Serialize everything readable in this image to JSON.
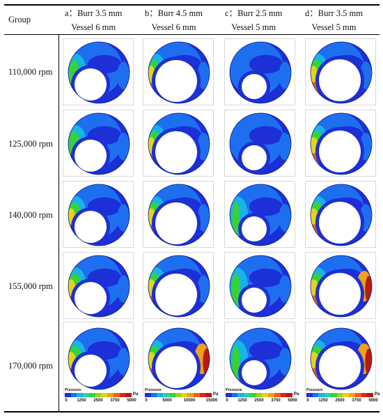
{
  "table": {
    "group_header": "Group",
    "columns": [
      {
        "letter": "a：",
        "burr": "Burr 3.5 mm",
        "vessel": "Vessel 6 mm"
      },
      {
        "letter": "b：",
        "burr": "Burr 4.5 mm",
        "vessel": "Vessel 6 mm"
      },
      {
        "letter": "c：",
        "burr": "Burr 2.5 mm",
        "vessel": "Vessel 5 mm"
      },
      {
        "letter": "d：",
        "burr": "Burr 3.5 mm",
        "vessel": "Vessel 5 mm"
      }
    ],
    "rows": [
      "110,000 rpm",
      "125,000 rpm",
      "140,000 rpm",
      "155,000 rpm",
      "170,000 rpm"
    ]
  },
  "legends": [
    {
      "title": "Pressure",
      "unit": "Pa",
      "ticks": [
        "0",
        "1250",
        "2500",
        "3750",
        "5000"
      ]
    },
    {
      "title": "Pressure",
      "unit": "Pa",
      "ticks": [
        "0",
        "5000",
        "10000",
        "15000"
      ]
    },
    {
      "title": "Pressure",
      "unit": "Pa",
      "ticks": [
        "0",
        "1250",
        "2500",
        "3750",
        "5000"
      ]
    },
    {
      "title": "Pressure",
      "unit": "Pa",
      "ticks": [
        "0",
        "1250",
        "2500",
        "3750",
        "5000"
      ]
    }
  ],
  "colormap": [
    "#1d2fd6",
    "#1e6ff0",
    "#18b4e6",
    "#22d6a8",
    "#36d23a",
    "#9ad21e",
    "#e0d51a",
    "#f0a01a",
    "#e8601a",
    "#d42c14",
    "#b81a10",
    "#7a4a20"
  ]
}
